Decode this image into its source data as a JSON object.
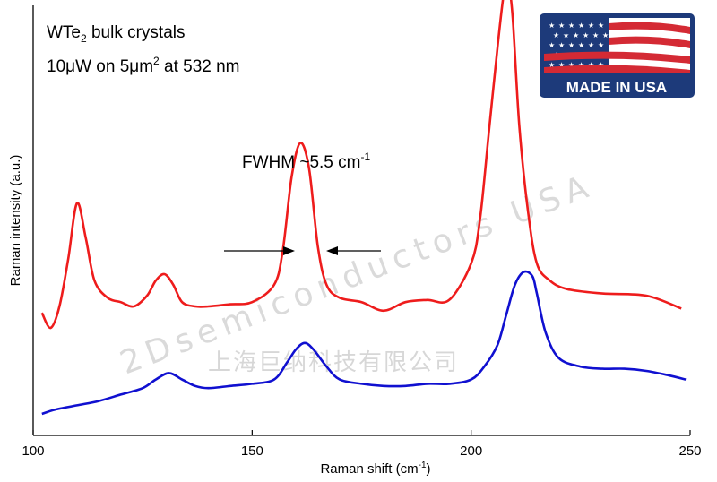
{
  "chart_data": {
    "type": "line",
    "title_line1_main": "WTe",
    "title_line1_sub": "2",
    "title_line1_rest": " bulk crystals",
    "title_line2_pre": "10μW on 5μm",
    "title_line2_sup": "2",
    "title_line2_post": " at 532 nm",
    "annotation_main": "FWHM ~5.5 cm",
    "annotation_sup": "-1",
    "xlabel_main": "Raman shift (cm",
    "xlabel_sup": "-1",
    "xlabel_end": ")",
    "ylabel": "Raman intensity (a.u.)",
    "xlim": [
      100,
      250
    ],
    "ylim": [
      0,
      100
    ],
    "xticks": [
      "100",
      "150",
      "200",
      "250"
    ],
    "grid": false,
    "series": [
      {
        "color": "#ee1c1c",
        "x": [
          102,
          104,
          106,
          108,
          110,
          112,
          114,
          117,
          120,
          123,
          126,
          128,
          130,
          132,
          134,
          137,
          140,
          145,
          150,
          155,
          157,
          159,
          161,
          163,
          165,
          167,
          170,
          175,
          180,
          185,
          190,
          195,
          200,
          202,
          204,
          206,
          207.5,
          208.5,
          209.5,
          211,
          213,
          215,
          218,
          222,
          230,
          240,
          248
        ],
        "values": [
          28.5,
          25,
          30,
          41,
          54,
          46,
          36,
          32,
          31,
          30,
          32.5,
          36,
          37.5,
          35,
          31,
          30,
          30,
          30.5,
          31,
          35,
          43,
          60,
          68,
          62,
          44,
          35,
          32,
          31,
          29,
          31,
          31.5,
          31.5,
          40,
          50,
          70,
          90,
          103,
          105,
          97,
          72,
          52,
          40,
          36,
          34,
          33,
          32.5,
          29.5
        ]
      },
      {
        "color": "#1010d0",
        "x": [
          102,
          105,
          110,
          115,
          120,
          125,
          128,
          131,
          134,
          137,
          140,
          145,
          150,
          155,
          158,
          160,
          162,
          164,
          167,
          170,
          175,
          180,
          185,
          190,
          195,
          200,
          203,
          206,
          208,
          210,
          212,
          214,
          215,
          217,
          220,
          225,
          230,
          235,
          240,
          245,
          249
        ],
        "values": [
          5,
          6,
          7,
          8,
          9.5,
          11,
          13,
          14.5,
          13,
          11.5,
          11,
          11.5,
          12,
          13,
          17,
          20,
          21.5,
          20,
          16,
          13,
          12,
          11.5,
          11.5,
          12,
          12,
          13,
          16,
          21,
          28,
          35,
          38,
          37,
          33,
          24,
          18,
          16,
          15.5,
          15.5,
          15,
          14,
          13
        ]
      }
    ]
  },
  "badge": {
    "text": "MADE IN USA",
    "blue": "#1d3a7a",
    "red": "#d42a34"
  },
  "watermark": {
    "english": "2Dsemiconductors USA",
    "chinese": "上海巨纳科技有限公司"
  }
}
